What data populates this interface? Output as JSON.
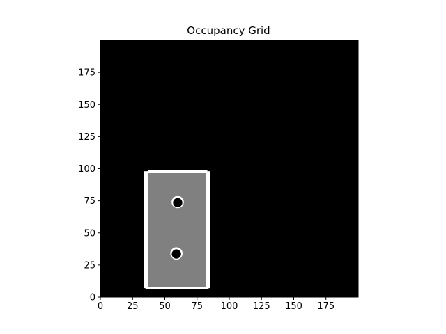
{
  "chart_data": {
    "type": "heatmap",
    "title": "Occupancy Grid",
    "xlabel": "",
    "ylabel": "",
    "xlim": [
      0,
      200
    ],
    "ylim": [
      0,
      200
    ],
    "origin": "lower",
    "x_ticks": [
      0,
      25,
      50,
      75,
      100,
      125,
      150,
      175
    ],
    "y_ticks": [
      0,
      25,
      50,
      75,
      100,
      125,
      150,
      175
    ],
    "cell_values": {
      "unknown": 0,
      "free": 0.5,
      "occupied": 1
    },
    "colors": {
      "unknown": "#000000",
      "free": "#808080",
      "occupied": "#ffffff",
      "axis": "#000000"
    },
    "regions": [
      {
        "kind": "free",
        "x": [
          36,
          83
        ],
        "y": [
          7,
          98
        ]
      },
      {
        "kind": "wall",
        "x": [
          35,
          84
        ],
        "y": [
          6,
          8
        ]
      },
      {
        "kind": "wall",
        "x": [
          34,
          37
        ],
        "y": [
          7,
          98
        ]
      },
      {
        "kind": "wall",
        "x": [
          82,
          85
        ],
        "y": [
          7,
          98
        ]
      },
      {
        "kind": "wall",
        "x": [
          37,
          83
        ],
        "y": [
          97,
          99
        ]
      },
      {
        "kind": "obstacle",
        "center": [
          60,
          74
        ],
        "radius": 3.6
      },
      {
        "kind": "obstacle",
        "center": [
          59,
          34
        ],
        "radius": 3.6
      }
    ]
  }
}
